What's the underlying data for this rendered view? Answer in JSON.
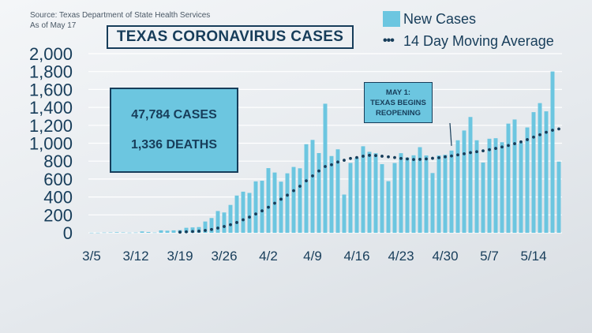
{
  "source": {
    "line1": "Source: Texas Department of State Health Services",
    "line2": "As of May 17"
  },
  "stats": {
    "cases": "47,784 CASES",
    "deaths": "1,336 DEATHS"
  },
  "annotation": {
    "line1": "MAY 1:",
    "line2": "TEXAS BEGINS",
    "line3": "REOPENING"
  },
  "colors": {
    "bar": "#6cc6e0",
    "dots": "#173d5a",
    "text": "#173d5a"
  },
  "chart_data": {
    "type": "bar",
    "title": "TEXAS CORONAVIRUS CASES",
    "xlabel": "",
    "ylabel": "",
    "ylim": [
      0,
      2000
    ],
    "yticks": [
      0,
      200,
      400,
      600,
      800,
      1000,
      1200,
      1400,
      1600,
      1800,
      2000
    ],
    "ytick_labels": [
      "0",
      "200",
      "400",
      "600",
      "800",
      "1,000",
      "1,200",
      "1,400",
      "1,600",
      "1,800",
      "2,000"
    ],
    "xtick_labels": [
      "3/5",
      "3/12",
      "3/19",
      "3/26",
      "4/2",
      "4/9",
      "4/16",
      "4/23",
      "4/30",
      "5/7",
      "5/14"
    ],
    "xtick_index": [
      0,
      7,
      14,
      21,
      28,
      35,
      42,
      49,
      56,
      63,
      70
    ],
    "grid": true,
    "legend_position": "top-right",
    "series": [
      {
        "name": "New Cases",
        "type": "bar",
        "values": [
          1,
          1,
          3,
          4,
          6,
          4,
          2,
          3,
          15,
          9,
          3,
          27,
          23,
          27,
          30,
          56,
          60,
          64,
          126,
          165,
          243,
          227,
          311,
          416,
          459,
          445,
          574,
          581,
          722,
          673,
          571,
          664,
          735,
          720,
          989,
          1037,
          890,
          1441,
          857,
          932,
          427,
          780,
          838,
          966,
          904,
          888,
          766,
          576,
          779,
          889,
          840,
          865,
          956,
          863,
          667,
          863,
          871,
          918,
          1033,
          1142,
          1293,
          1033,
          784,
          1050,
          1056,
          1011,
          1219,
          1265,
          1005,
          1176,
          1347,
          1448,
          1356,
          1801,
          795
        ]
      },
      {
        "name": "14 Day Moving Average",
        "type": "line",
        "values": [
          null,
          null,
          null,
          null,
          null,
          null,
          null,
          null,
          null,
          null,
          null,
          null,
          null,
          null,
          7,
          11,
          14,
          18,
          26,
          37,
          53,
          70,
          90,
          115,
          145,
          175,
          210,
          245,
          285,
          330,
          375,
          420,
          470,
          520,
          580,
          635,
          690,
          740,
          760,
          790,
          810,
          830,
          840,
          855,
          865,
          862,
          855,
          848,
          840,
          830,
          825,
          818,
          820,
          825,
          832,
          838,
          848,
          858,
          870,
          882,
          895,
          905,
          915,
          928,
          942,
          958,
          975,
          995,
          1015,
          1040,
          1068,
          1095,
          1122,
          1145,
          1160
        ]
      }
    ]
  }
}
